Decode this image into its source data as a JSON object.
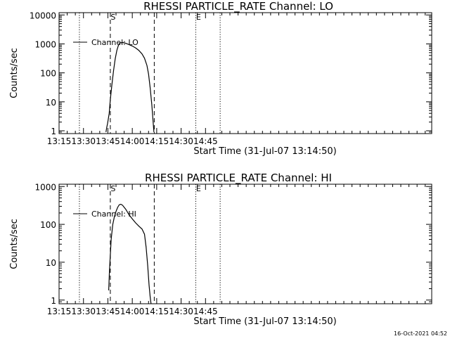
{
  "chart_data": [
    {
      "type": "line",
      "title": "RHESSI PARTICLE_RATE Channel: LO",
      "xlabel": "Start Time (31-Jul-07 13:14:50)",
      "ylabel": "Counts/sec",
      "yscale": "log",
      "xlim_minutes": [
        795,
        1024
      ],
      "ylim": [
        0.8,
        12000
      ],
      "x_tick_labels": [
        "13:15",
        "13:30",
        "13:45",
        "14:00",
        "14:15",
        "14:30",
        "14:45"
      ],
      "x_ticks_minutes": [
        795,
        810,
        825,
        840,
        855,
        870,
        885
      ],
      "y_tick_labels": [
        "1",
        "10",
        "100",
        "1000",
        "10000"
      ],
      "y_ticks": [
        1,
        10,
        100,
        1000,
        10000
      ],
      "legend": {
        "label": "Channel: LO",
        "placement": "top-left"
      },
      "markers": [
        {
          "label": "",
          "time_minutes": 807.5,
          "style": "dotted"
        },
        {
          "label": "S",
          "time_minutes": 826.5,
          "style": "dashed"
        },
        {
          "label": "",
          "time_minutes": 853.5,
          "style": "dashed"
        },
        {
          "label": "E",
          "time_minutes": 879.0,
          "style": "dotted"
        },
        {
          "label": "",
          "time_minutes": 894.0,
          "style": "dotted"
        }
      ],
      "series": [
        {
          "name": "Channel: LO",
          "x_minutes": [
            823.8,
            824.3,
            824.8,
            825.3,
            825.8,
            826.5,
            827.5,
            828.5,
            829.5,
            830.5,
            831.5,
            832.5,
            834.0,
            836.0,
            838.0,
            840.0,
            842.0,
            844.0,
            846.0,
            847.5,
            849.0,
            850.0,
            851.0,
            852.0,
            852.8,
            853.3
          ],
          "values": [
            0.9,
            1.3,
            1.8,
            2.6,
            4.0,
            12,
            40,
            120,
            300,
            600,
            900,
            1080,
            1120,
            1050,
            950,
            850,
            730,
            600,
            450,
            320,
            180,
            90,
            30,
            8,
            2,
            0.9
          ]
        }
      ]
    },
    {
      "type": "line",
      "title": "RHESSI PARTICLE_RATE Channel: HI",
      "xlabel": "Start Time (31-Jul-07 13:14:50)",
      "ylabel": "Counts/sec",
      "yscale": "log",
      "xlim_minutes": [
        795,
        1024
      ],
      "ylim": [
        0.8,
        1150
      ],
      "x_tick_labels": [
        "13:15",
        "13:30",
        "13:45",
        "14:00",
        "14:15",
        "14:30",
        "14:45"
      ],
      "x_ticks_minutes": [
        795,
        810,
        825,
        840,
        855,
        870,
        885
      ],
      "y_tick_labels": [
        "1",
        "10",
        "100",
        "1000"
      ],
      "y_ticks": [
        1,
        10,
        100,
        1000
      ],
      "legend": {
        "label": "Channel: HI",
        "placement": "top-left"
      },
      "markers": [
        {
          "label": "",
          "time_minutes": 807.5,
          "style": "dotted"
        },
        {
          "label": "S",
          "time_minutes": 826.5,
          "style": "dashed"
        },
        {
          "label": "",
          "time_minutes": 853.5,
          "style": "dashed"
        },
        {
          "label": "E",
          "time_minutes": 879.0,
          "style": "dotted"
        },
        {
          "label": "",
          "time_minutes": 894.0,
          "style": "dotted"
        }
      ],
      "series": [
        {
          "name": "Channel: HI",
          "x_minutes": [
            825.5,
            826.0,
            827.0,
            828.0,
            829.0,
            830.0,
            831.0,
            832.0,
            833.0,
            834.0,
            836.0,
            838.0,
            840.0,
            842.0,
            844.0,
            846.0,
            847.5,
            848.5,
            849.5,
            850.3,
            851.0,
            851.5
          ],
          "values": [
            1.8,
            6,
            40,
            100,
            160,
            220,
            280,
            330,
            340,
            320,
            250,
            180,
            140,
            110,
            90,
            75,
            55,
            25,
            8,
            2.5,
            1.2,
            0.8
          ]
        }
      ]
    }
  ],
  "footer": {
    "timestamp": "16-Oct-2021 04:52"
  }
}
